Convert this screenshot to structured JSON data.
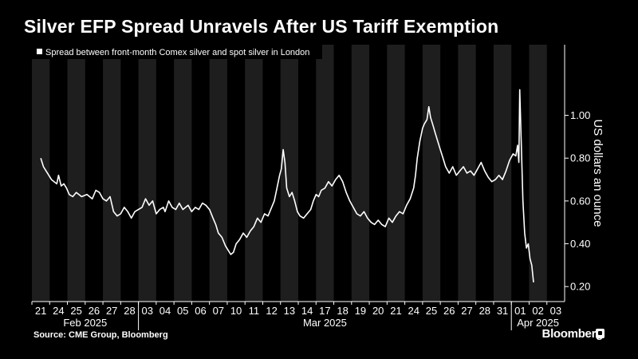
{
  "title": "Silver EFP Spread Unravels After US Tariff Exemption",
  "source": "Source: CME Group, Bloomberg",
  "brand": "Bloomberg",
  "colors": {
    "background": "#000000",
    "band": "#1e1e1e",
    "line": "#ffffff"
  },
  "chart_data": {
    "type": "line",
    "legend": "Spread between front-month Comex silver and spot silver in London",
    "ylabel": "US dollars an ounce",
    "ylim": [
      0.13,
      1.33
    ],
    "yticks": [
      0.2,
      0.4,
      0.6,
      0.8,
      1.0
    ],
    "ytick_labels": [
      "0.20",
      "0.40",
      "0.60",
      "0.80",
      "1.00"
    ],
    "x_ticks": [
      "21",
      "24",
      "25",
      "26",
      "27",
      "28",
      "03",
      "04",
      "05",
      "06",
      "07",
      "10",
      "11",
      "12",
      "13",
      "14",
      "17",
      "18",
      "19",
      "20",
      "21",
      "24",
      "25",
      "26",
      "27",
      "28",
      "31",
      "01",
      "02",
      "03"
    ],
    "month_groups": [
      {
        "label": "Feb 2025",
        "from": 0,
        "to": 5
      },
      {
        "label": "Mar 2025",
        "from": 6,
        "to": 26
      },
      {
        "label": "Apr 2025",
        "from": 27,
        "to": 29
      }
    ],
    "series": [
      {
        "name": "Spread between front-month Comex silver and spot silver in London",
        "points": [
          [
            0.0,
            0.8
          ],
          [
            0.15,
            0.76
          ],
          [
            0.3,
            0.74
          ],
          [
            0.45,
            0.72
          ],
          [
            0.6,
            0.7
          ],
          [
            0.75,
            0.69
          ],
          [
            0.9,
            0.68
          ],
          [
            1.0,
            0.72
          ],
          [
            1.15,
            0.67
          ],
          [
            1.3,
            0.68
          ],
          [
            1.45,
            0.66
          ],
          [
            1.6,
            0.63
          ],
          [
            1.8,
            0.62
          ],
          [
            2.0,
            0.64
          ],
          [
            2.3,
            0.62
          ],
          [
            2.6,
            0.63
          ],
          [
            2.9,
            0.61
          ],
          [
            3.1,
            0.65
          ],
          [
            3.3,
            0.64
          ],
          [
            3.5,
            0.61
          ],
          [
            3.7,
            0.6
          ],
          [
            3.9,
            0.62
          ],
          [
            4.1,
            0.55
          ],
          [
            4.3,
            0.53
          ],
          [
            4.5,
            0.54
          ],
          [
            4.7,
            0.57
          ],
          [
            4.9,
            0.55
          ],
          [
            5.1,
            0.52
          ],
          [
            5.3,
            0.55
          ],
          [
            5.5,
            0.56
          ],
          [
            5.7,
            0.57
          ],
          [
            5.9,
            0.61
          ],
          [
            6.1,
            0.58
          ],
          [
            6.3,
            0.6
          ],
          [
            6.5,
            0.54
          ],
          [
            6.7,
            0.56
          ],
          [
            6.9,
            0.57
          ],
          [
            7.0,
            0.55
          ],
          [
            7.2,
            0.6
          ],
          [
            7.4,
            0.57
          ],
          [
            7.6,
            0.56
          ],
          [
            7.8,
            0.59
          ],
          [
            8.0,
            0.56
          ],
          [
            8.3,
            0.58
          ],
          [
            8.5,
            0.55
          ],
          [
            8.7,
            0.57
          ],
          [
            8.9,
            0.56
          ],
          [
            9.1,
            0.59
          ],
          [
            9.3,
            0.58
          ],
          [
            9.5,
            0.56
          ],
          [
            9.7,
            0.52
          ],
          [
            9.85,
            0.49
          ],
          [
            10.0,
            0.45
          ],
          [
            10.2,
            0.43
          ],
          [
            10.4,
            0.39
          ],
          [
            10.55,
            0.37
          ],
          [
            10.7,
            0.35
          ],
          [
            10.85,
            0.36
          ],
          [
            11.0,
            0.4
          ],
          [
            11.2,
            0.42
          ],
          [
            11.4,
            0.45
          ],
          [
            11.6,
            0.43
          ],
          [
            11.8,
            0.46
          ],
          [
            12.0,
            0.48
          ],
          [
            12.2,
            0.52
          ],
          [
            12.4,
            0.5
          ],
          [
            12.6,
            0.54
          ],
          [
            12.8,
            0.53
          ],
          [
            13.0,
            0.57
          ],
          [
            13.15,
            0.6
          ],
          [
            13.3,
            0.66
          ],
          [
            13.45,
            0.72
          ],
          [
            13.55,
            0.75
          ],
          [
            13.65,
            0.84
          ],
          [
            13.75,
            0.78
          ],
          [
            13.85,
            0.66
          ],
          [
            14.0,
            0.62
          ],
          [
            14.15,
            0.64
          ],
          [
            14.3,
            0.6
          ],
          [
            14.45,
            0.55
          ],
          [
            14.6,
            0.53
          ],
          [
            14.8,
            0.52
          ],
          [
            15.0,
            0.54
          ],
          [
            15.2,
            0.56
          ],
          [
            15.35,
            0.6
          ],
          [
            15.5,
            0.63
          ],
          [
            15.65,
            0.62
          ],
          [
            15.8,
            0.65
          ],
          [
            16.0,
            0.66
          ],
          [
            16.2,
            0.69
          ],
          [
            16.4,
            0.67
          ],
          [
            16.6,
            0.7
          ],
          [
            16.8,
            0.72
          ],
          [
            17.0,
            0.69
          ],
          [
            17.2,
            0.64
          ],
          [
            17.4,
            0.6
          ],
          [
            17.6,
            0.57
          ],
          [
            17.8,
            0.54
          ],
          [
            18.0,
            0.53
          ],
          [
            18.2,
            0.55
          ],
          [
            18.4,
            0.52
          ],
          [
            18.6,
            0.5
          ],
          [
            18.8,
            0.49
          ],
          [
            19.0,
            0.51
          ],
          [
            19.2,
            0.49
          ],
          [
            19.4,
            0.48
          ],
          [
            19.6,
            0.52
          ],
          [
            19.8,
            0.5
          ],
          [
            20.0,
            0.53
          ],
          [
            20.2,
            0.55
          ],
          [
            20.4,
            0.54
          ],
          [
            20.6,
            0.58
          ],
          [
            20.8,
            0.61
          ],
          [
            21.0,
            0.66
          ],
          [
            21.1,
            0.72
          ],
          [
            21.2,
            0.8
          ],
          [
            21.35,
            0.88
          ],
          [
            21.5,
            0.94
          ],
          [
            21.6,
            0.96
          ],
          [
            21.75,
            0.98
          ],
          [
            21.85,
            1.04
          ],
          [
            21.95,
            0.99
          ],
          [
            22.1,
            0.95
          ],
          [
            22.2,
            0.92
          ],
          [
            22.35,
            0.88
          ],
          [
            22.5,
            0.84
          ],
          [
            22.65,
            0.8
          ],
          [
            22.8,
            0.76
          ],
          [
            23.0,
            0.73
          ],
          [
            23.2,
            0.76
          ],
          [
            23.4,
            0.72
          ],
          [
            23.6,
            0.74
          ],
          [
            23.8,
            0.76
          ],
          [
            24.0,
            0.73
          ],
          [
            24.2,
            0.74
          ],
          [
            24.4,
            0.72
          ],
          [
            24.6,
            0.75
          ],
          [
            24.8,
            0.78
          ],
          [
            25.0,
            0.74
          ],
          [
            25.2,
            0.71
          ],
          [
            25.4,
            0.69
          ],
          [
            25.6,
            0.7
          ],
          [
            25.8,
            0.72
          ],
          [
            26.0,
            0.7
          ],
          [
            26.2,
            0.74
          ],
          [
            26.4,
            0.79
          ],
          [
            26.6,
            0.82
          ],
          [
            26.75,
            0.81
          ],
          [
            26.85,
            0.86
          ],
          [
            26.92,
            0.78
          ],
          [
            26.97,
            1.12
          ],
          [
            27.05,
            0.9
          ],
          [
            27.15,
            0.6
          ],
          [
            27.25,
            0.45
          ],
          [
            27.35,
            0.38
          ],
          [
            27.45,
            0.4
          ],
          [
            27.55,
            0.33
          ],
          [
            27.65,
            0.3
          ],
          [
            27.75,
            0.22
          ]
        ]
      }
    ]
  }
}
